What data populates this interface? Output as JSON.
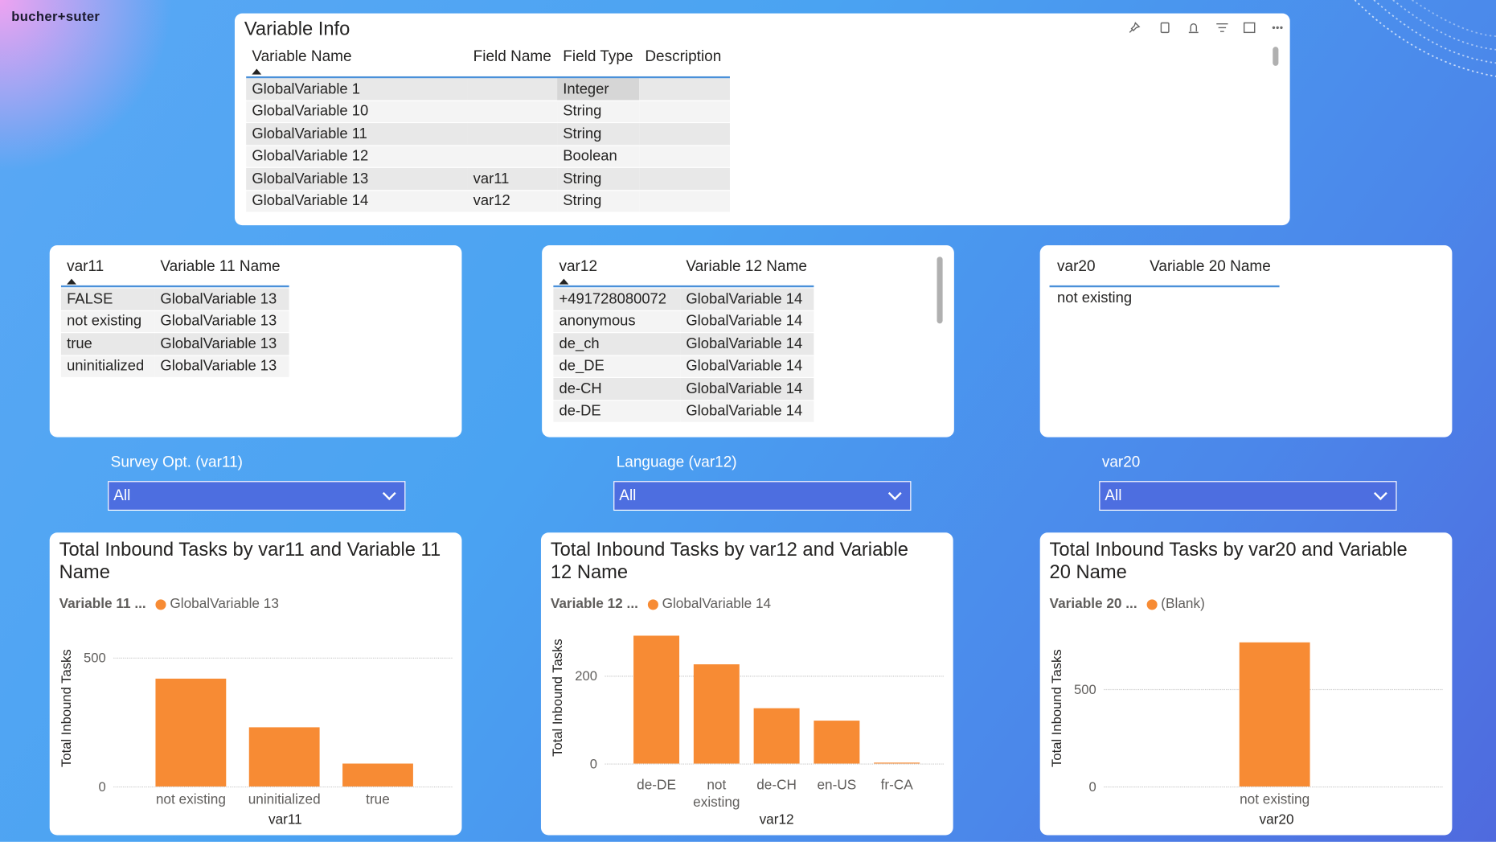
{
  "logo": "bucher+suter",
  "variable_info": {
    "title": "Variable Info",
    "columns": [
      "Variable Name",
      "Field Name",
      "Field Type",
      "Description"
    ],
    "rows": [
      [
        "GlobalVariable 1",
        null,
        "Integer",
        null
      ],
      [
        "GlobalVariable 10",
        null,
        "String",
        null
      ],
      [
        "GlobalVariable 11",
        null,
        "String",
        null
      ],
      [
        "GlobalVariable 12",
        null,
        "Boolean",
        null
      ],
      [
        "GlobalVariable 13",
        "var11",
        "String",
        null
      ],
      [
        "GlobalVariable 14",
        "var12",
        "String",
        null
      ]
    ]
  },
  "tables": [
    {
      "columns": [
        "var11",
        "Variable 11 Name"
      ],
      "rows": [
        [
          "FALSE",
          "GlobalVariable 13"
        ],
        [
          "not existing",
          "GlobalVariable 13"
        ],
        [
          "true",
          "GlobalVariable 13"
        ],
        [
          "uninitialized",
          "GlobalVariable 13"
        ]
      ]
    },
    {
      "columns": [
        "var12",
        "Variable 12 Name"
      ],
      "rows": [
        [
          "+491728080072",
          "GlobalVariable 14"
        ],
        [
          "anonymous",
          "GlobalVariable 14"
        ],
        [
          "de_ch",
          "GlobalVariable 14"
        ],
        [
          "de_DE",
          "GlobalVariable 14"
        ],
        [
          "de-CH",
          "GlobalVariable 14"
        ],
        [
          "de-DE",
          "GlobalVariable 14"
        ]
      ]
    },
    {
      "columns": [
        "var20",
        "Variable 20 Name"
      ],
      "rows": [
        [
          "not existing",
          null
        ]
      ]
    }
  ],
  "slicers": [
    {
      "label": "Survey Opt. (var11)",
      "value": "All"
    },
    {
      "label": "Language (var12)",
      "value": "All"
    },
    {
      "label": "var20",
      "value": "All"
    }
  ],
  "chart_data": [
    {
      "type": "bar",
      "title": "Total Inbound Tasks by var11 and Variable 11 Name",
      "legend_title": "Variable 11 ...",
      "x_label": "var11",
      "y_label": "Total Inbound Tasks",
      "categories": [
        "not existing",
        "uninitialized",
        "true"
      ],
      "series": [
        {
          "name": "GlobalVariable 13",
          "color": "#f78b34",
          "values": [
            420,
            230,
            90
          ]
        }
      ],
      "ylim": [
        0,
        560
      ],
      "yticks": [
        0,
        500
      ],
      "grid": true
    },
    {
      "type": "bar",
      "title": "Total Inbound Tasks by var12 and Variable 12 Name",
      "legend_title": "Variable 12 ...",
      "x_label": "var12",
      "y_label": "Total Inbound Tasks",
      "categories": [
        "de-DE",
        "not existing",
        "de-CH",
        "en-US",
        "fr-CA"
      ],
      "series": [
        {
          "name": "GlobalVariable 14",
          "color": "#f78b34",
          "values": [
            291,
            226,
            126,
            98,
            2
          ]
        }
      ],
      "ylim": [
        0,
        315
      ],
      "yticks": [
        0,
        200
      ],
      "grid": true
    },
    {
      "type": "bar",
      "title": "Total Inbound Tasks by var20 and Variable 20 Name",
      "legend_title": "Variable 20 ...",
      "x_label": "var20",
      "y_label": "Total Inbound Tasks",
      "categories": [
        "not existing"
      ],
      "series": [
        {
          "name": "(Blank)",
          "color": "#f78b34",
          "values": [
            740
          ]
        }
      ],
      "ylim": [
        0,
        780
      ],
      "yticks": [
        0,
        500
      ],
      "grid": true
    }
  ]
}
